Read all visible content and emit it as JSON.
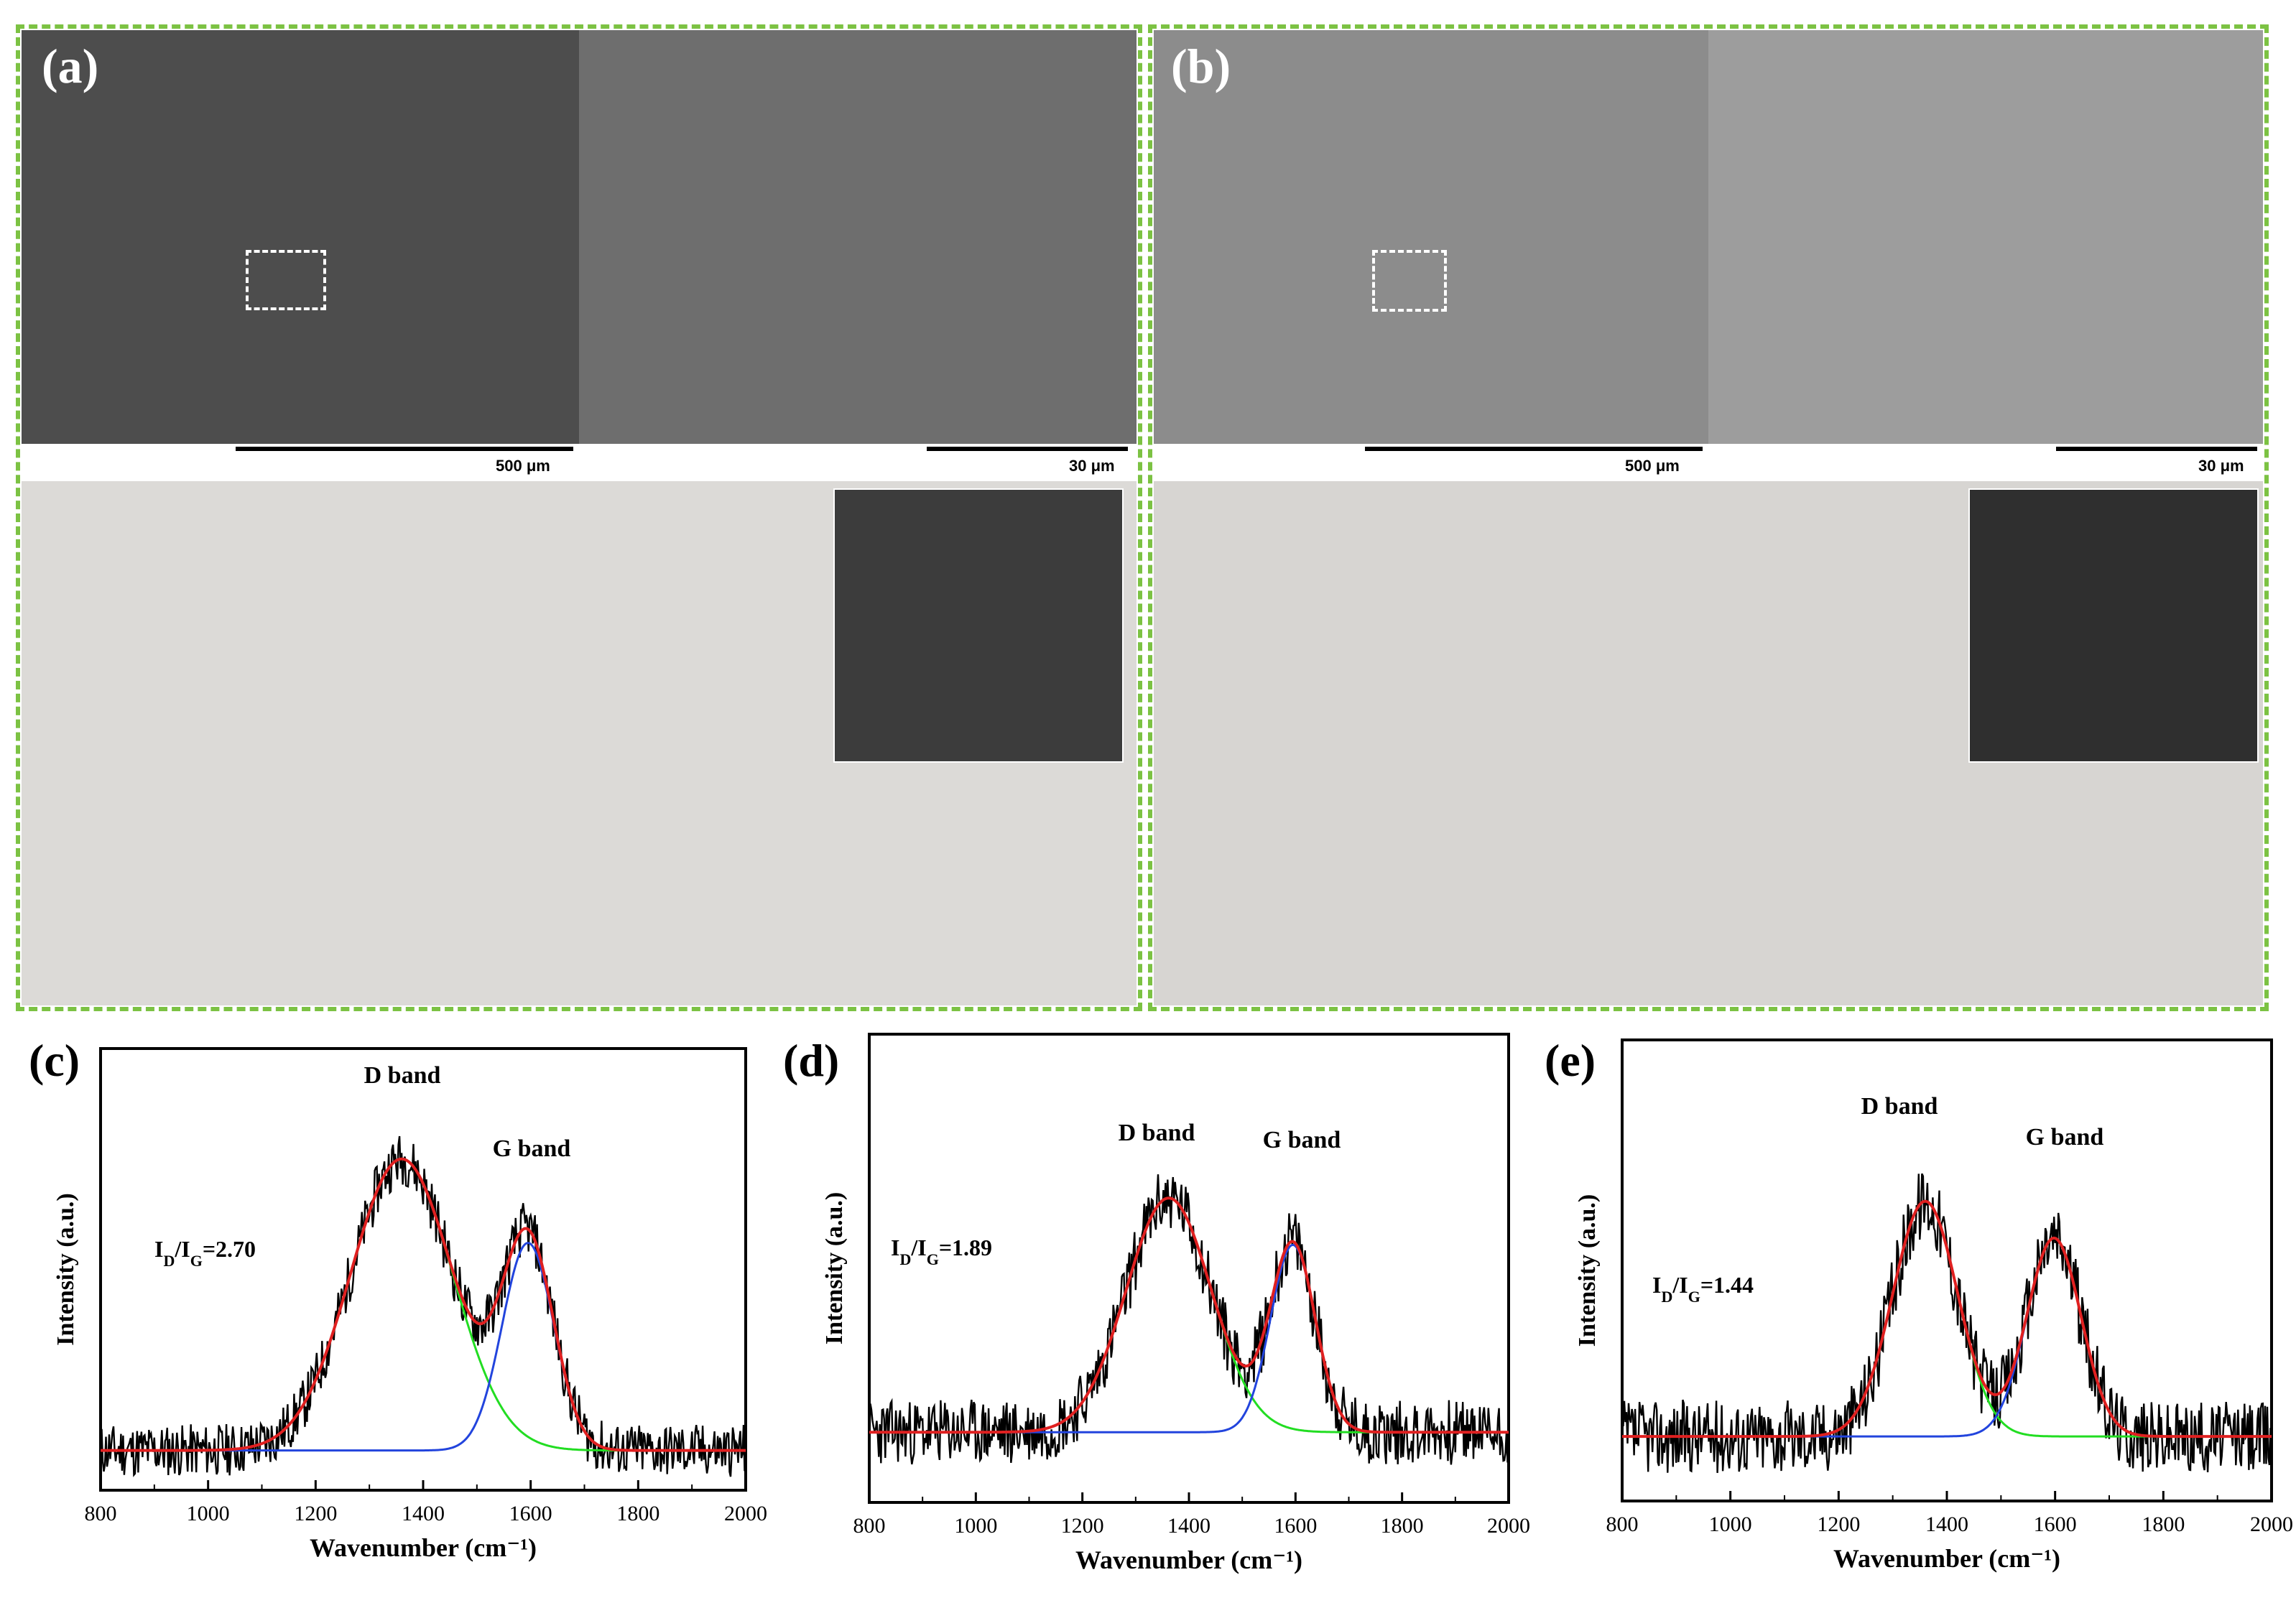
{
  "figure": {
    "panel_a": {
      "label": "(a)",
      "scale_bar_left": "500 μm",
      "scale_bar_right": "30 μm",
      "description_colors": {
        "sem": "#5e5e5e",
        "photo_bg": "#e8e6e3"
      }
    },
    "panel_b": {
      "label": "(b)",
      "scale_bar_left": "500 μm",
      "scale_bar_right": "30 μm"
    },
    "border_color": "#7cc243"
  },
  "chart_data": [
    {
      "panel": "(c)",
      "type": "line",
      "xlabel": "Wavenumber (cm⁻¹)",
      "ylabel": "Intensity (a.u.)",
      "xlim": [
        800,
        2000
      ],
      "x_ticks": [
        "800",
        "1000",
        "1200",
        "1400",
        "1600",
        "1800",
        "2000"
      ],
      "ratio_text": {
        "I": "I",
        "D": "D",
        "slash": "/I",
        "G": "G",
        "value": "=2.70"
      },
      "band_labels": {
        "d": "D band",
        "g": "G band"
      },
      "baseline": 0.09,
      "d_band": {
        "center": 1360,
        "sigma": 95,
        "amplitude": 0.66
      },
      "g_band": {
        "center": 1595,
        "sigma": 48,
        "amplitude": 0.47
      },
      "noise": 0.06,
      "ymax": 1.0,
      "series": [
        {
          "role": "raw",
          "color": "#000000"
        },
        {
          "role": "fit",
          "color": "#e02020"
        },
        {
          "role": "d_component",
          "color": "#22dd22"
        },
        {
          "role": "g_component",
          "color": "#2244dd"
        }
      ]
    },
    {
      "panel": "(d)",
      "type": "line",
      "xlabel": "Wavenumber (cm⁻¹)",
      "ylabel": "Intensity (a.u.)",
      "xlim": [
        800,
        2000
      ],
      "x_ticks": [
        "800",
        "1000",
        "1200",
        "1400",
        "1600",
        "1800",
        "2000"
      ],
      "ratio_text": {
        "I": "I",
        "D": "D",
        "slash": "/I",
        "G": "G",
        "value": "=1.89"
      },
      "band_labels": {
        "d": "D band",
        "g": "G band"
      },
      "baseline": 0.15,
      "d_band": {
        "center": 1362,
        "sigma": 80,
        "amplitude": 0.5
      },
      "g_band": {
        "center": 1595,
        "sigma": 42,
        "amplitude": 0.4
      },
      "noise": 0.07,
      "ymax": 1.0,
      "series": [
        {
          "role": "raw",
          "color": "#000000"
        },
        {
          "role": "fit",
          "color": "#e02020"
        },
        {
          "role": "d_component",
          "color": "#22dd22"
        },
        {
          "role": "g_component",
          "color": "#2244dd"
        }
      ]
    },
    {
      "panel": "(e)",
      "type": "line",
      "xlabel": "Wavenumber (cm⁻¹)",
      "ylabel": "Intensity (a.u.)",
      "xlim": [
        800,
        2000
      ],
      "x_ticks": [
        "800",
        "1000",
        "1200",
        "1400",
        "1600",
        "1800",
        "2000"
      ],
      "ratio_text": {
        "I": "I",
        "D": "D",
        "slash": "/I",
        "G": "G",
        "value": "=1.44"
      },
      "band_labels": {
        "d": "D band",
        "g": "G band"
      },
      "baseline": 0.14,
      "d_band": {
        "center": 1360,
        "sigma": 60,
        "amplitude": 0.51
      },
      "g_band": {
        "center": 1598,
        "sigma": 50,
        "amplitude": 0.43
      },
      "noise": 0.08,
      "ymax": 1.0,
      "series": [
        {
          "role": "raw",
          "color": "#000000"
        },
        {
          "role": "fit",
          "color": "#e02020"
        },
        {
          "role": "d_component",
          "color": "#22dd22"
        },
        {
          "role": "g_component",
          "color": "#2244dd"
        }
      ]
    }
  ]
}
